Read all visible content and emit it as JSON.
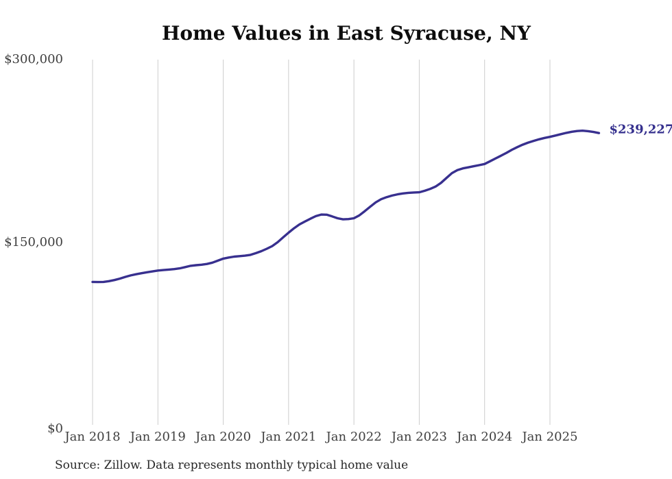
{
  "page": {
    "source_note": "Source: Zillow. Data represents monthly typical home value"
  },
  "chart_data": {
    "type": "line",
    "title": "Home Values in East Syracuse, NY",
    "xlabel": "",
    "ylabel": "",
    "ylim": [
      0,
      300000
    ],
    "grid": "vertical-only",
    "legend": "none",
    "line_color": "#38308f",
    "grid_color": "#cccccc",
    "end_label": "$239,227",
    "end_value": 239227,
    "y_ticks": [
      {
        "label": "$0",
        "value": 0
      },
      {
        "label": "$150,000",
        "value": 150000
      },
      {
        "label": "$300,000",
        "value": 300000
      }
    ],
    "x_tick_labels": [
      "Jan 2018",
      "Jan 2019",
      "Jan 2020",
      "Jan 2021",
      "Jan 2022",
      "Jan 2023",
      "Jan 2024",
      "Jan 2025"
    ],
    "x": [
      "2018-01",
      "2018-02",
      "2018-03",
      "2018-04",
      "2018-05",
      "2018-06",
      "2018-07",
      "2018-08",
      "2018-09",
      "2018-10",
      "2018-11",
      "2018-12",
      "2019-01",
      "2019-02",
      "2019-03",
      "2019-04",
      "2019-05",
      "2019-06",
      "2019-07",
      "2019-08",
      "2019-09",
      "2019-10",
      "2019-11",
      "2019-12",
      "2020-01",
      "2020-02",
      "2020-03",
      "2020-04",
      "2020-05",
      "2020-06",
      "2020-07",
      "2020-08",
      "2020-09",
      "2020-10",
      "2020-11",
      "2020-12",
      "2021-01",
      "2021-02",
      "2021-03",
      "2021-04",
      "2021-05",
      "2021-06",
      "2021-07",
      "2021-08",
      "2021-09",
      "2021-10",
      "2021-11",
      "2021-12",
      "2022-01",
      "2022-02",
      "2022-03",
      "2022-04",
      "2022-05",
      "2022-06",
      "2022-07",
      "2022-08",
      "2022-09",
      "2022-10",
      "2022-11",
      "2022-12",
      "2023-01",
      "2023-02",
      "2023-03",
      "2023-04",
      "2023-05",
      "2023-06",
      "2023-07",
      "2023-08",
      "2023-09",
      "2023-10",
      "2023-11",
      "2023-12",
      "2024-01",
      "2024-02",
      "2024-03",
      "2024-04",
      "2024-05",
      "2024-06",
      "2024-07",
      "2024-08",
      "2024-09",
      "2024-10",
      "2024-11",
      "2024-12",
      "2025-01",
      "2025-02",
      "2025-03",
      "2025-04",
      "2025-05",
      "2025-06",
      "2025-07",
      "2025-08",
      "2025-09",
      "2025-10"
    ],
    "values": [
      117200,
      117100,
      117200,
      117800,
      118700,
      119900,
      121300,
      122500,
      123500,
      124300,
      125100,
      125800,
      126500,
      126900,
      127300,
      127700,
      128300,
      129300,
      130400,
      130900,
      131300,
      131900,
      133000,
      134600,
      136300,
      137200,
      137900,
      138300,
      138700,
      139400,
      140800,
      142400,
      144400,
      146600,
      149800,
      153700,
      157600,
      161200,
      164300,
      166700,
      169000,
      171100,
      172400,
      172300,
      170900,
      169400,
      168500,
      168700,
      169400,
      171800,
      175200,
      178900,
      182400,
      185000,
      186700,
      188000,
      189000,
      189700,
      190200,
      190500,
      190700,
      191900,
      193400,
      195400,
      198400,
      202400,
      206400,
      208800,
      210300,
      211100,
      212000,
      212900,
      213900,
      216100,
      218400,
      220600,
      223000,
      225500,
      227700,
      229700,
      231400,
      232800,
      234100,
      235200,
      236100,
      237200,
      238300,
      239400,
      240300,
      240900,
      241200,
      240800,
      240100,
      239227
    ]
  }
}
